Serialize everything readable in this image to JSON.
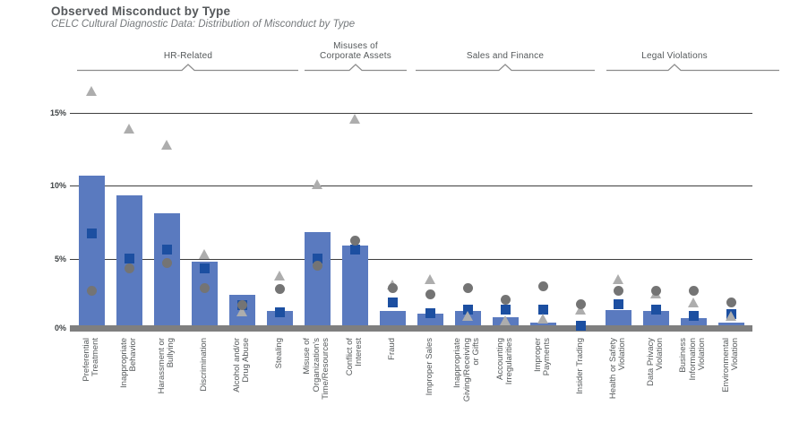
{
  "header": {
    "title": "Observed Misconduct by Type",
    "subtitle": "CELC Cultural Diagnostic Data: Distribution of Misconduct by Type"
  },
  "groups": [
    {
      "label": "HR-Related",
      "first_category": 0,
      "last_category": 5
    },
    {
      "label": "Misuses of\nCorporate Assets",
      "first_category": 6,
      "last_category": 8
    },
    {
      "label": "Sales and Finance",
      "first_category": 9,
      "last_category": 13
    },
    {
      "label": "Legal Violations",
      "first_category": 14,
      "last_category": 17
    }
  ],
  "chart_data": {
    "type": "bar",
    "title": "Observed Misconduct by Type",
    "subtitle": "CELC Cultural Diagnostic Data: Distribution of Misconduct by Type",
    "xlabel": "",
    "ylabel": "",
    "ylim": [
      0,
      17
    ],
    "grid": true,
    "legend": false,
    "y_axis": {
      "ticks": [
        {
          "value": 15,
          "label": "15%"
        },
        {
          "value": 10,
          "label": "10%"
        },
        {
          "value": 5,
          "label": "5%"
        },
        {
          "value": 0,
          "label": "0%"
        }
      ]
    },
    "categories": [
      "Preferential Treatment",
      "Inappropriate Behavior",
      "Harassment or Bullying",
      "Discrimination",
      "Alcohol and/or Drug Abuse",
      "Stealing",
      "Misuse of Organization's Time/Resources",
      "Conflict of Interest",
      "Fraud",
      "Improper Sales",
      "Inappropriate Giving/Receiving or Gifts",
      "Accounting Irregularities",
      "Improper Payments",
      "Insider Trading",
      "Health or Safety Violation",
      "Data Privacy Violation",
      "Business Information Violation",
      "Environmental Violation"
    ],
    "tick_labels": [
      "Preferential\nTreatment",
      "Inappropriate\nBehavior",
      "Harassment or\nBullying",
      "Discrimination",
      "Alcohol and/or\nDrug Abuse",
      "Stealing",
      "Misuse of\nOrganization's\nTime/Resources",
      "Conflict of\nInterest",
      "Fraud",
      "Improper Sales",
      "Inappropriate\nGiving/Receiving\nor Gifts",
      "Accounting\nIrregularities",
      "Improper\nPayments",
      "Insider Trading",
      "Health or Safety\nViolation",
      "Data Privacy\nViolation",
      "Business\nInformation\nViolation",
      "Environmental\nViolation"
    ],
    "series": [
      {
        "name": "bar",
        "marker": "bar",
        "color": "#5a7abf",
        "values": [
          10.7,
          9.3,
          8.1,
          4.8,
          2.5,
          1.4,
          6.8,
          5.9,
          1.4,
          1.25,
          1.4,
          1.0,
          0.6,
          0.2,
          1.5,
          1.4,
          0.9,
          0.6
        ]
      },
      {
        "name": "square",
        "marker": "square",
        "color": "#1c4fa1",
        "values": [
          6.7,
          5.0,
          5.6,
          4.3,
          1.8,
          1.3,
          5.0,
          5.6,
          2.0,
          1.25,
          1.5,
          1.5,
          1.5,
          0.4,
          1.9,
          1.5,
          1.1,
          1.2
        ]
      },
      {
        "name": "circle",
        "marker": "circle",
        "color": "#747474",
        "values": [
          2.8,
          4.3,
          4.7,
          3.0,
          1.8,
          2.9,
          4.5,
          6.2,
          2.95,
          2.55,
          3.0,
          2.2,
          3.1,
          1.9,
          2.8,
          2.8,
          2.8,
          2.0
        ]
      },
      {
        "name": "triangle",
        "marker": "triangle",
        "color": "#adadad",
        "values": [
          16.5,
          13.9,
          12.8,
          5.3,
          1.4,
          3.85,
          10.1,
          14.6,
          3.2,
          3.6,
          1.1,
          0.75,
          0.9,
          1.5,
          3.6,
          2.6,
          2.0,
          1.1
        ]
      }
    ],
    "colors": {
      "gridline": "#3e3e3e",
      "baseline_band": "#7f7f7f"
    }
  }
}
